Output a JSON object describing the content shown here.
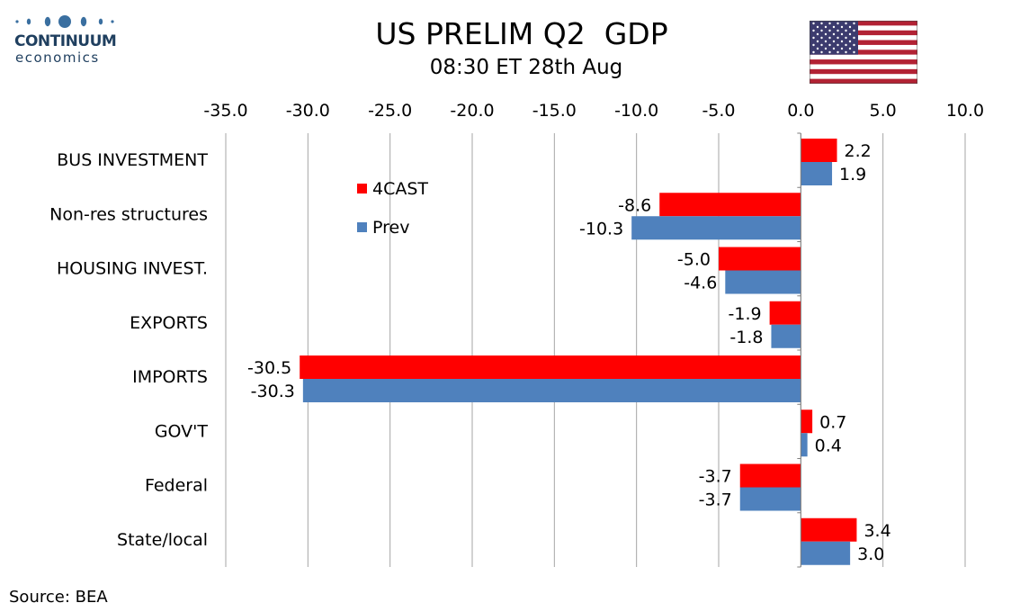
{
  "logo": {
    "name": "CONTINUUM",
    "sub": "economics"
  },
  "source": "Source: BEA",
  "chart_data": {
    "type": "bar",
    "orientation": "horizontal",
    "title": "US PRELIM Q2  GDP",
    "subtitle": "08:30 ET 28th Aug",
    "xlabel": "",
    "ylabel": "",
    "xlim": [
      -35,
      10
    ],
    "xticks": [
      -35,
      -30,
      -25,
      -20,
      -15,
      -10,
      -5,
      0,
      5,
      10
    ],
    "xtick_labels": [
      "-35.0",
      "-30.0",
      "-25.0",
      "-20.0",
      "-15.0",
      "-10.0",
      "-5.0",
      "0.0",
      "5.0",
      "10.0"
    ],
    "axis_position": "top",
    "grid": true,
    "legend": "top-left",
    "categories": [
      "BUS INVESTMENT",
      "Non-res structures",
      "HOUSING INVEST.",
      "EXPORTS",
      "IMPORTS",
      "GOV'T",
      "Federal",
      "State/local"
    ],
    "series": [
      {
        "name": "4CAST",
        "color": "#ff0000",
        "values": [
          2.2,
          -8.6,
          -5.0,
          -1.9,
          -30.5,
          0.7,
          -3.7,
          3.4
        ],
        "labels": [
          "2.2",
          "-8.6",
          "-5.0",
          "-1.9",
          "-30.5",
          "0.7",
          "-3.7",
          "3.4"
        ]
      },
      {
        "name": "Prev",
        "color": "#4f81bd",
        "values": [
          1.9,
          -10.3,
          -4.6,
          -1.8,
          -30.3,
          0.4,
          -3.7,
          3.0
        ],
        "labels": [
          "1.9",
          "-10.3",
          "-4.6",
          "-1.8",
          "-30.3",
          "0.4",
          "-3.7",
          "3.0"
        ]
      }
    ]
  }
}
